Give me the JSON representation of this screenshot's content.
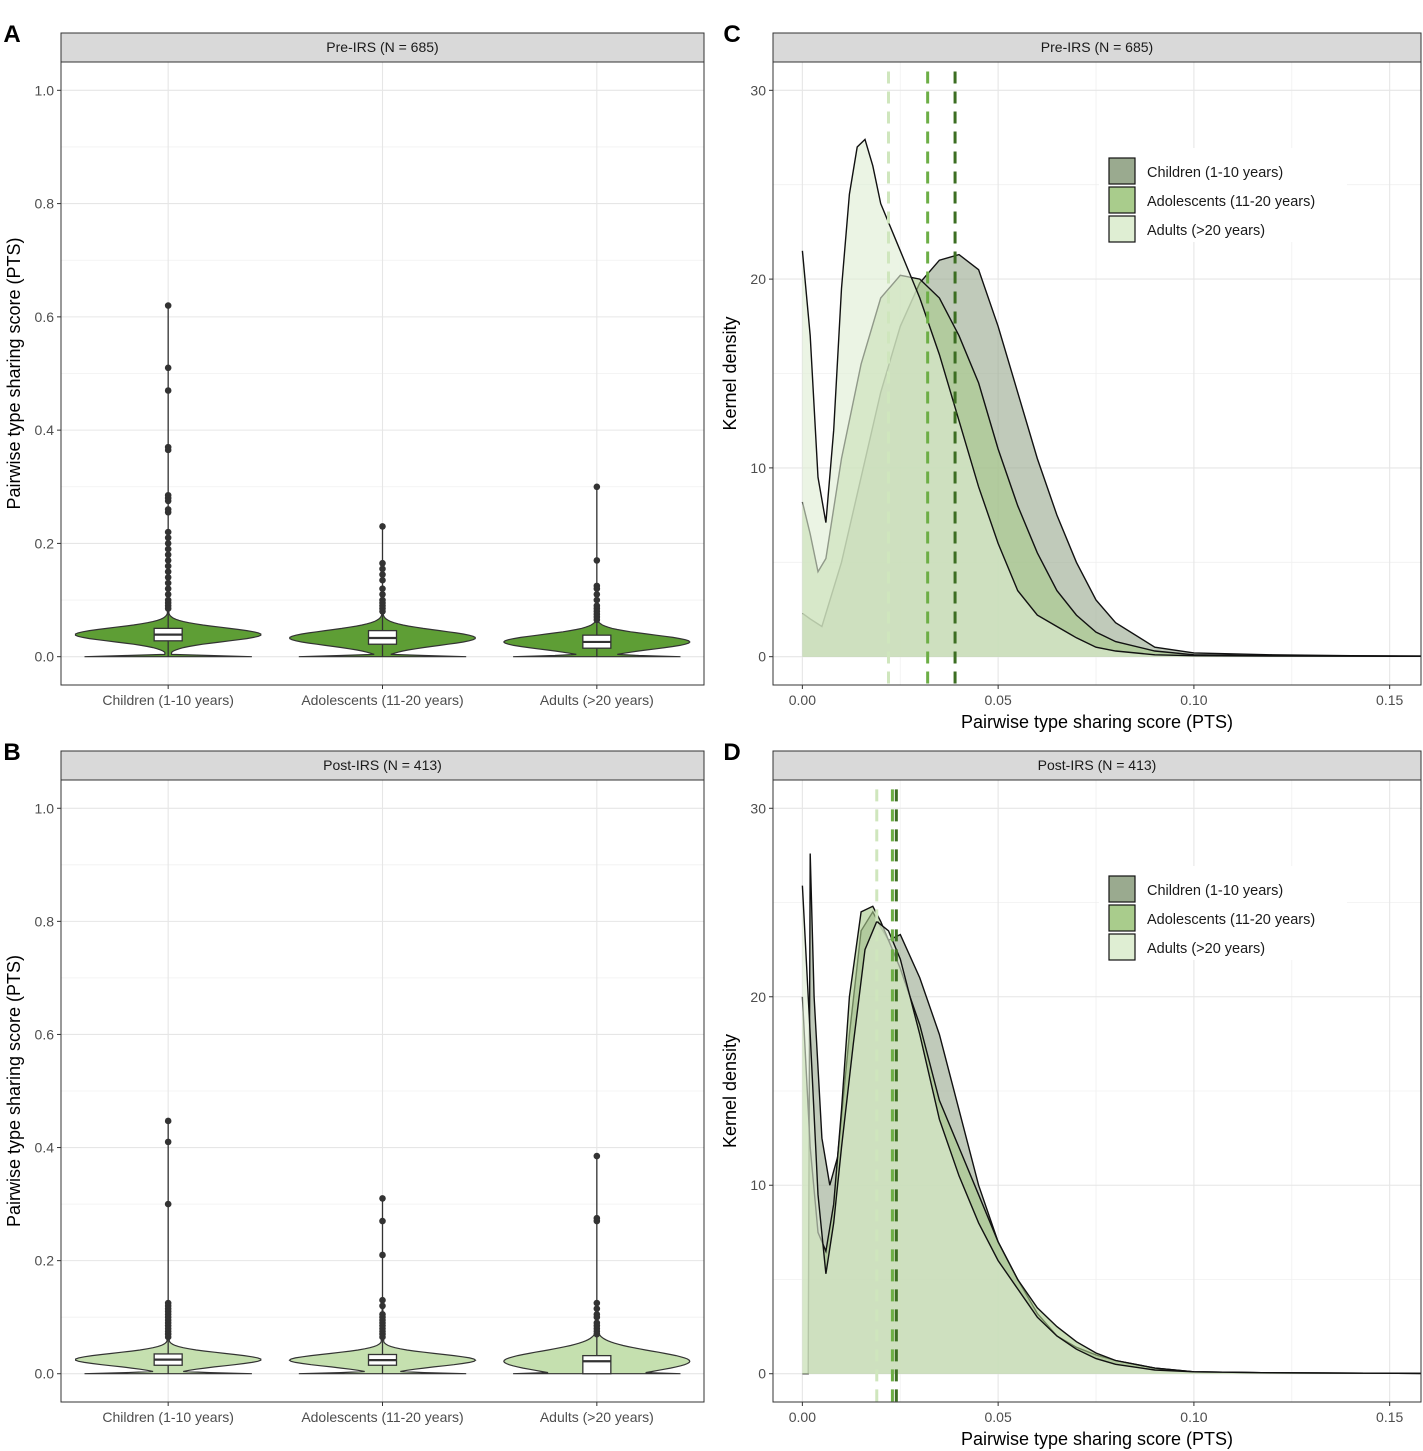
{
  "colors": {
    "violin_pre": "#5e9e35",
    "violin_post": "#c5e0af",
    "children": "#9aaa8f",
    "adolescents": "#a9cc8c",
    "adults": "#dfeed3",
    "line_children": "#3c6e22",
    "line_adolescents": "#6cae45",
    "line_adults": "#cfe6bd"
  },
  "chart_data": [
    {
      "panel": "A",
      "type": "violin",
      "strip": "Pre-IRS (N = 685)",
      "xlabel": "",
      "ylabel": "Pairwise type sharing score (PTS)",
      "ylim": [
        -0.05,
        1.05
      ],
      "yticks": [
        "0.0",
        "0.2",
        "0.4",
        "0.6",
        "0.8",
        "1.0"
      ],
      "categories": [
        "Children (1-10 years)",
        "Adolescents (11-20 years)",
        "Adults (>20 years)"
      ],
      "groups": [
        {
          "name": "Children (1-10 years)",
          "q1": 0.028,
          "median": 0.039,
          "q3": 0.05,
          "whisker_low": 0.0,
          "whisker_high": 0.62,
          "outliers": [
            0.62,
            0.51,
            0.47,
            0.37,
            0.365,
            0.285,
            0.28,
            0.275,
            0.26,
            0.255,
            0.22,
            0.21,
            0.2,
            0.19,
            0.18,
            0.17,
            0.16,
            0.15,
            0.14,
            0.13,
            0.12,
            0.11,
            0.1,
            0.095,
            0.09,
            0.085
          ]
        },
        {
          "name": "Adolescents (11-20 years)",
          "q1": 0.022,
          "median": 0.033,
          "q3": 0.046,
          "whisker_low": 0.0,
          "whisker_high": 0.23,
          "outliers": [
            0.23,
            0.165,
            0.155,
            0.145,
            0.135,
            0.12,
            0.11,
            0.1,
            0.095,
            0.09,
            0.085,
            0.08
          ]
        },
        {
          "name": "Adults (>20 years)",
          "q1": 0.015,
          "median": 0.026,
          "q3": 0.038,
          "whisker_low": 0.0,
          "whisker_high": 0.3,
          "outliers": [
            0.3,
            0.17,
            0.125,
            0.12,
            0.11,
            0.1,
            0.09,
            0.085,
            0.08,
            0.075,
            0.07,
            0.065
          ]
        }
      ]
    },
    {
      "panel": "B",
      "type": "violin",
      "strip": "Post-IRS (N = 413)",
      "xlabel": "",
      "ylabel": "Pairwise type sharing score (PTS)",
      "ylim": [
        -0.05,
        1.05
      ],
      "yticks": [
        "0.0",
        "0.2",
        "0.4",
        "0.6",
        "0.8",
        "1.0"
      ],
      "categories": [
        "Children (1-10 years)",
        "Adolescents (11-20 years)",
        "Adults (>20 years)"
      ],
      "groups": [
        {
          "name": "Children (1-10 years)",
          "q1": 0.015,
          "median": 0.025,
          "q3": 0.035,
          "whisker_low": 0.0,
          "whisker_high": 0.45,
          "outliers": [
            0.447,
            0.41,
            0.3,
            0.125,
            0.12,
            0.115,
            0.11,
            0.105,
            0.1,
            0.095,
            0.09,
            0.085,
            0.08,
            0.075,
            0.07,
            0.065
          ]
        },
        {
          "name": "Adolescents (11-20 years)",
          "q1": 0.015,
          "median": 0.024,
          "q3": 0.034,
          "whisker_low": 0.0,
          "whisker_high": 0.31,
          "outliers": [
            0.31,
            0.27,
            0.21,
            0.13,
            0.12,
            0.105,
            0.1,
            0.095,
            0.09,
            0.085,
            0.08,
            0.075,
            0.07,
            0.065
          ]
        },
        {
          "name": "Adults (>20 years)",
          "q1": 0.0,
          "median": 0.022,
          "q3": 0.032,
          "whisker_low": 0.0,
          "whisker_high": 0.385,
          "outliers": [
            0.385,
            0.275,
            0.27,
            0.125,
            0.115,
            0.105,
            0.1,
            0.09,
            0.085,
            0.08,
            0.075,
            0.07
          ]
        }
      ]
    },
    {
      "panel": "C",
      "type": "area",
      "strip": "Pre-IRS (N = 685)",
      "xlabel": "Pairwise type sharing score (PTS)",
      "ylabel": "Kernel density",
      "xlim": [
        -0.0075,
        0.158
      ],
      "ylim": [
        -1.5,
        31.5
      ],
      "xticks": [
        "0.00",
        "0.05",
        "0.10",
        "0.15"
      ],
      "yticks": [
        "0",
        "10",
        "20",
        "30"
      ],
      "legend": [
        "Children (1-10 years)",
        "Adolescents (11-20 years)",
        "Adults (>20 years)"
      ],
      "medians": {
        "children": 0.039,
        "adolescents": 0.032,
        "adults": 0.022
      },
      "series": [
        {
          "name": "Children (1-10 years)",
          "x": [
            0,
            0.002,
            0.005,
            0.01,
            0.015,
            0.02,
            0.025,
            0.03,
            0.035,
            0.04,
            0.045,
            0.05,
            0.055,
            0.06,
            0.065,
            0.07,
            0.075,
            0.08,
            0.09,
            0.1,
            0.12,
            0.14,
            0.158
          ],
          "y": [
            2.3,
            2.0,
            1.6,
            5.0,
            9.5,
            14.0,
            17.5,
            19.8,
            21.0,
            21.3,
            20.5,
            17.5,
            14.0,
            10.5,
            7.5,
            5.0,
            3.0,
            1.8,
            0.5,
            0.2,
            0.1,
            0.05,
            0.03
          ]
        },
        {
          "name": "Adolescents (11-20 years)",
          "x": [
            0,
            0.002,
            0.004,
            0.006,
            0.01,
            0.015,
            0.02,
            0.025,
            0.03,
            0.035,
            0.04,
            0.045,
            0.05,
            0.055,
            0.06,
            0.065,
            0.07,
            0.075,
            0.08,
            0.09,
            0.1,
            0.12,
            0.158
          ],
          "y": [
            8.2,
            6.5,
            4.5,
            5.2,
            10.5,
            15.5,
            19.0,
            20.2,
            20.0,
            19.0,
            17.0,
            14.5,
            11.0,
            8.0,
            5.5,
            3.5,
            2.2,
            1.3,
            0.8,
            0.3,
            0.1,
            0.05,
            0.03
          ]
        },
        {
          "name": "Adults (>20 years)",
          "x": [
            0,
            0.002,
            0.004,
            0.006,
            0.008,
            0.01,
            0.012,
            0.014,
            0.016,
            0.018,
            0.02,
            0.025,
            0.03,
            0.035,
            0.04,
            0.045,
            0.05,
            0.055,
            0.06,
            0.065,
            0.07,
            0.075,
            0.08,
            0.09,
            0.1,
            0.12,
            0.158
          ],
          "y": [
            21.5,
            17.0,
            9.5,
            7.1,
            12.0,
            19.5,
            24.5,
            27.0,
            27.4,
            26.0,
            24.0,
            21.5,
            19.0,
            16.0,
            12.5,
            9.0,
            6.0,
            3.5,
            2.2,
            1.6,
            1.0,
            0.5,
            0.3,
            0.1,
            0.05,
            0.03,
            0.02
          ]
        }
      ]
    },
    {
      "panel": "D",
      "type": "area",
      "strip": "Post-IRS (N = 413)",
      "xlabel": "Pairwise type sharing score (PTS)",
      "ylabel": "Kernel density",
      "xlim": [
        -0.0075,
        0.158
      ],
      "ylim": [
        -1.5,
        31.5
      ],
      "xticks": [
        "0.00",
        "0.05",
        "0.10",
        "0.15"
      ],
      "yticks": [
        "0",
        "10",
        "20",
        "30"
      ],
      "legend": [
        "Children (1-10 years)",
        "Adolescents (11-20 years)",
        "Adults (>20 years)"
      ],
      "medians": {
        "children": 0.024,
        "adolescents": 0.023,
        "adults": 0.019
      },
      "series": [
        {
          "name": "Children (1-10 years)",
          "x": [
            0,
            0.0015,
            0.002,
            0.003,
            0.005,
            0.007,
            0.009,
            0.012,
            0.015,
            0.018,
            0.02,
            0.022,
            0.025,
            0.03,
            0.035,
            0.04,
            0.045,
            0.05,
            0.055,
            0.06,
            0.065,
            0.07,
            0.075,
            0.08,
            0.09,
            0.1,
            0.12,
            0.158
          ],
          "y": [
            0,
            0,
            27.6,
            20.0,
            12.5,
            10.0,
            11.5,
            18.0,
            23.5,
            24.5,
            23.7,
            23.0,
            23.3,
            21.0,
            18.0,
            14.0,
            10.0,
            7.0,
            5.0,
            3.2,
            2.0,
            1.4,
            1.0,
            0.7,
            0.3,
            0.1,
            0.05,
            0.02
          ]
        },
        {
          "name": "Adolescents (11-20 years)",
          "x": [
            0,
            0.002,
            0.004,
            0.006,
            0.008,
            0.01,
            0.012,
            0.015,
            0.018,
            0.02,
            0.025,
            0.03,
            0.035,
            0.04,
            0.045,
            0.05,
            0.055,
            0.06,
            0.065,
            0.07,
            0.075,
            0.08,
            0.09,
            0.1,
            0.12,
            0.158
          ],
          "y": [
            20.0,
            12.0,
            7.5,
            6.5,
            9.0,
            14.0,
            20.0,
            24.5,
            24.8,
            24.0,
            21.5,
            18.5,
            14.5,
            12.0,
            9.5,
            7.0,
            5.0,
            3.5,
            2.5,
            1.7,
            1.1,
            0.7,
            0.3,
            0.1,
            0.05,
            0.02
          ]
        },
        {
          "name": "Adults (>20 years)",
          "x": [
            0,
            0.002,
            0.004,
            0.006,
            0.008,
            0.01,
            0.013,
            0.016,
            0.019,
            0.022,
            0.025,
            0.03,
            0.035,
            0.04,
            0.045,
            0.05,
            0.055,
            0.06,
            0.065,
            0.07,
            0.075,
            0.08,
            0.09,
            0.1,
            0.12,
            0.158
          ],
          "y": [
            25.9,
            18.0,
            9.5,
            5.3,
            8.0,
            12.0,
            17.5,
            22.5,
            24.0,
            23.5,
            22.0,
            18.0,
            13.5,
            10.5,
            8.0,
            6.0,
            4.5,
            3.0,
            2.0,
            1.3,
            0.8,
            0.5,
            0.2,
            0.1,
            0.05,
            0.02
          ]
        }
      ]
    }
  ]
}
